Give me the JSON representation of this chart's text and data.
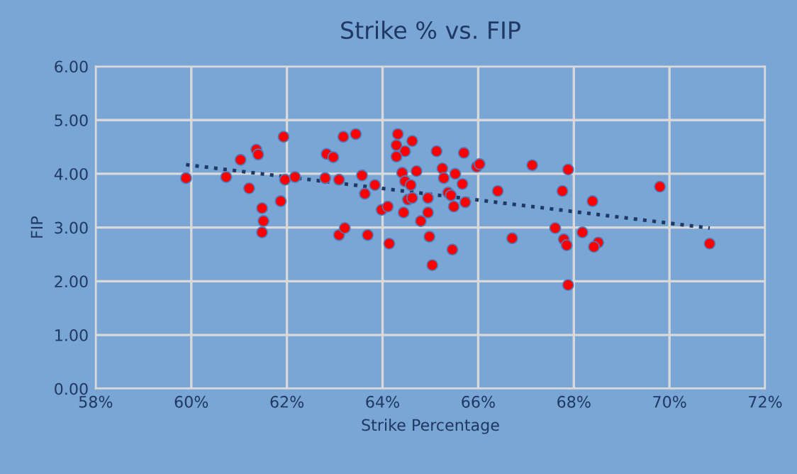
{
  "chart_data": {
    "type": "scatter",
    "title": "Strike % vs. FIP",
    "xlabel": "Strike Percentage",
    "ylabel": "FIP",
    "xlim": [
      58,
      72
    ],
    "xticks": [
      {
        "value": 58,
        "label": "58%"
      },
      {
        "value": 60,
        "label": "60%"
      },
      {
        "value": 62,
        "label": "62%"
      },
      {
        "value": 64,
        "label": "64%"
      },
      {
        "value": 66,
        "label": "66%"
      },
      {
        "value": 68,
        "label": "68%"
      },
      {
        "value": 70,
        "label": "70%"
      },
      {
        "value": 72,
        "label": "72%"
      }
    ],
    "ylim": [
      0,
      6
    ],
    "yticks": [
      {
        "value": 0,
        "label": "0.00"
      },
      {
        "value": 1,
        "label": "1.00"
      },
      {
        "value": 2,
        "label": "2.00"
      },
      {
        "value": 3,
        "label": "3.00"
      },
      {
        "value": 4,
        "label": "4.00"
      },
      {
        "value": 5,
        "label": "5.00"
      },
      {
        "value": 6,
        "label": "6.00"
      }
    ],
    "grid": true,
    "marker": "circle",
    "series": [
      {
        "color": "#ff0000",
        "x": [
          59.89,
          60.73,
          61.03,
          61.36,
          61.4,
          61.21,
          61.48,
          61.51,
          61.48,
          61.93,
          61.87,
          61.96,
          62.17,
          62.83,
          62.97,
          62.8,
          63.09,
          63.18,
          63.44,
          63.09,
          63.57,
          63.84,
          63.63,
          63.21,
          63.69,
          63.98,
          64.11,
          64.14,
          64.32,
          64.29,
          64.47,
          64.29,
          64.62,
          64.41,
          64.47,
          64.59,
          64.71,
          64.53,
          64.62,
          64.44,
          64.8,
          64.95,
          64.95,
          64.98,
          65.04,
          65.13,
          65.25,
          65.28,
          65.52,
          65.37,
          65.43,
          65.49,
          65.73,
          65.67,
          65.7,
          65.46,
          65.97,
          66.03,
          66.41,
          67.13,
          66.71,
          67.88,
          67.76,
          68.39,
          69.8,
          67.61,
          68.18,
          67.79,
          67.85,
          68.51,
          68.42,
          67.88,
          70.84
        ],
        "values": [
          3.92,
          3.94,
          4.26,
          4.45,
          4.36,
          3.73,
          3.36,
          3.12,
          2.91,
          4.69,
          3.49,
          3.89,
          3.94,
          4.37,
          4.31,
          3.92,
          2.86,
          4.69,
          4.74,
          3.89,
          3.97,
          3.79,
          3.63,
          2.99,
          2.86,
          3.33,
          3.39,
          2.7,
          4.74,
          4.53,
          4.42,
          4.32,
          4.61,
          4.02,
          3.86,
          3.79,
          4.05,
          3.52,
          3.55,
          3.28,
          3.12,
          3.55,
          3.28,
          2.83,
          2.3,
          4.42,
          4.1,
          3.92,
          4.0,
          3.65,
          3.6,
          3.39,
          3.47,
          3.81,
          4.39,
          2.59,
          4.13,
          4.18,
          3.68,
          4.16,
          2.8,
          4.08,
          3.68,
          3.49,
          3.76,
          2.99,
          2.91,
          2.78,
          2.67,
          2.72,
          2.64,
          1.93,
          2.7
        ]
      },
      {
        "type": "line",
        "color": "#1f3864",
        "line_style": "dotted",
        "marker": "none",
        "x": [
          59.89,
          70.84
        ],
        "values": [
          4.17,
          2.99
        ]
      }
    ]
  }
}
